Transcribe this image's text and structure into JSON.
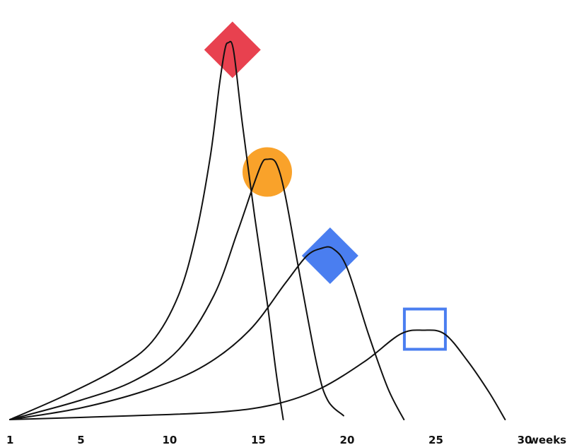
{
  "chart_data": {
    "type": "line",
    "x_axis": {
      "ticks": [
        1,
        5,
        10,
        15,
        20,
        25,
        30
      ],
      "tick_labels": [
        "1",
        "5",
        "10",
        "15",
        "20",
        "25",
        "30"
      ],
      "unit_label": "weeks",
      "range": [
        1,
        30
      ]
    },
    "y_axis": {
      "visible": false,
      "range": [
        0,
        1
      ]
    },
    "grid": false,
    "legend": "none",
    "series": [
      {
        "color": "#e8414f",
        "marker": "diamond-filled",
        "peak": {
          "x": 13.3,
          "y": 0.97
        },
        "points": [
          [
            1,
            0.0
          ],
          [
            4,
            0.06
          ],
          [
            7,
            0.13
          ],
          [
            9,
            0.2
          ],
          [
            10.5,
            0.32
          ],
          [
            11.5,
            0.48
          ],
          [
            12.3,
            0.68
          ],
          [
            12.8,
            0.86
          ],
          [
            13.1,
            0.95
          ],
          [
            13.3,
            0.97
          ],
          [
            13.6,
            0.95
          ],
          [
            14.1,
            0.76
          ],
          [
            14.8,
            0.52
          ],
          [
            15.5,
            0.3
          ],
          [
            16.0,
            0.12
          ],
          [
            16.4,
            0.0
          ]
        ]
      },
      {
        "color": "#f9a22a",
        "marker": "circle-filled",
        "peak": {
          "x": 15.5,
          "y": 0.67
        },
        "points": [
          [
            1,
            0.0
          ],
          [
            5,
            0.05
          ],
          [
            8,
            0.1
          ],
          [
            10.5,
            0.18
          ],
          [
            12.5,
            0.32
          ],
          [
            13.8,
            0.48
          ],
          [
            14.7,
            0.6
          ],
          [
            15.2,
            0.66
          ],
          [
            15.5,
            0.67
          ],
          [
            16.0,
            0.66
          ],
          [
            16.5,
            0.58
          ],
          [
            17.3,
            0.38
          ],
          [
            18.3,
            0.14
          ],
          [
            18.9,
            0.05
          ],
          [
            19.8,
            0.01
          ]
        ]
      },
      {
        "color": "#4a7ef0",
        "marker": "diamond-filled",
        "peak": {
          "x": 18.8,
          "y": 0.44
        },
        "points": [
          [
            1,
            0.0
          ],
          [
            5,
            0.03
          ],
          [
            9,
            0.08
          ],
          [
            12,
            0.14
          ],
          [
            14.5,
            0.23
          ],
          [
            16.5,
            0.35
          ],
          [
            17.7,
            0.42
          ],
          [
            18.5,
            0.44
          ],
          [
            19.2,
            0.44
          ],
          [
            20.0,
            0.39
          ],
          [
            21.2,
            0.22
          ],
          [
            22.3,
            0.08
          ],
          [
            23.2,
            0.0
          ]
        ]
      },
      {
        "color": "#4a7ef0",
        "marker": "square-outline",
        "peak": {
          "x": 24.3,
          "y": 0.23
        },
        "points": [
          [
            1,
            0.0
          ],
          [
            8,
            0.01
          ],
          [
            13,
            0.02
          ],
          [
            16,
            0.04
          ],
          [
            18.5,
            0.08
          ],
          [
            21,
            0.15
          ],
          [
            23,
            0.22
          ],
          [
            24.3,
            0.23
          ],
          [
            25.5,
            0.22
          ],
          [
            26.8,
            0.15
          ],
          [
            28.0,
            0.07
          ],
          [
            28.9,
            0.0
          ]
        ]
      }
    ]
  }
}
